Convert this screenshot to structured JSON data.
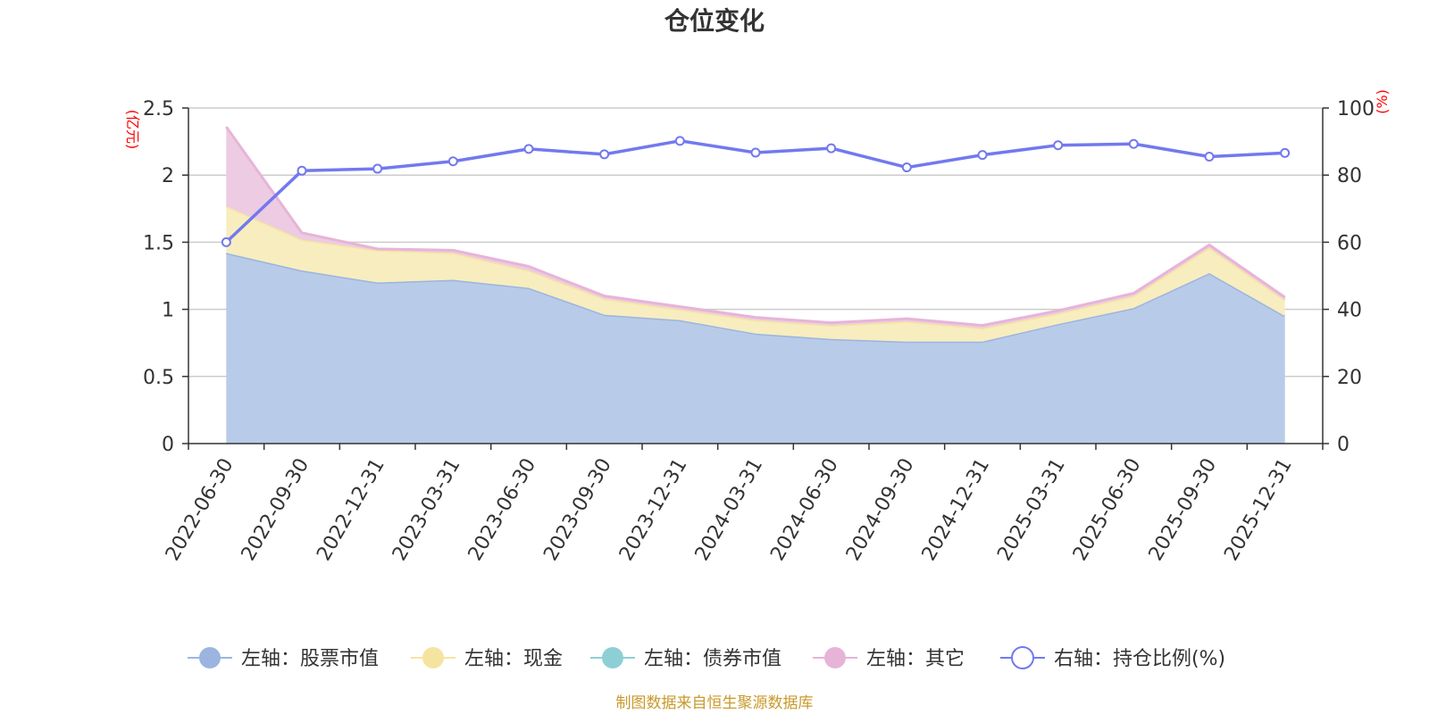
{
  "chart_data": {
    "type": "area",
    "title": "仓位变化",
    "categories": [
      "2022-06-30",
      "2022-09-30",
      "2022-12-31",
      "2023-03-31",
      "2023-06-30",
      "2023-09-30",
      "2023-12-31",
      "2024-03-31",
      "2024-06-30",
      "2024-09-30",
      "2024-12-31",
      "2025-03-31",
      "2025-06-30",
      "2025-09-30",
      "2025-12-31"
    ],
    "left_axis": {
      "unit": "(亿元)",
      "ylim": [
        0,
        2.5
      ],
      "ticks": [
        "0",
        "0.5",
        "1",
        "1.5",
        "2",
        "2.5"
      ],
      "tick_values": [
        0,
        0.5,
        1,
        1.5,
        2,
        2.5
      ]
    },
    "right_axis": {
      "unit": "(%)",
      "ylim": [
        0,
        100
      ],
      "ticks": [
        "0",
        "20",
        "40",
        "60",
        "80",
        "100"
      ],
      "tick_values": [
        0,
        20,
        40,
        60,
        80,
        100
      ]
    },
    "series": [
      {
        "name": "左轴：股票市值",
        "axis": "left",
        "kind": "stacked-area",
        "color": "#9bb5e0",
        "fill": "#b8cbe8",
        "values": [
          1.42,
          1.29,
          1.2,
          1.22,
          1.16,
          0.96,
          0.92,
          0.82,
          0.78,
          0.76,
          0.76,
          0.89,
          1.01,
          1.27,
          0.95
        ]
      },
      {
        "name": "左轴：现金",
        "axis": "left",
        "kind": "stacked-area",
        "color": "#f5e4a0",
        "fill": "#f8edbf",
        "values": [
          0.35,
          0.23,
          0.24,
          0.2,
          0.13,
          0.12,
          0.08,
          0.1,
          0.1,
          0.15,
          0.1,
          0.08,
          0.09,
          0.19,
          0.12
        ]
      },
      {
        "name": "左轴：债券市值",
        "axis": "left",
        "kind": "stacked-area",
        "color": "#8ecfd6",
        "fill": "#b7e2e6",
        "values": [
          0,
          0,
          0,
          0,
          0,
          0,
          0,
          0,
          0,
          0,
          0,
          0,
          0,
          0,
          0
        ]
      },
      {
        "name": "左轴：其它",
        "axis": "left",
        "kind": "stacked-area",
        "color": "#e7b4d8",
        "fill": "#edcbe3",
        "values": [
          0.59,
          0.05,
          0.01,
          0.02,
          0.03,
          0.02,
          0.02,
          0.02,
          0.02,
          0.02,
          0.02,
          0.02,
          0.02,
          0.02,
          0.02
        ]
      },
      {
        "name": "右轴：持仓比例(%)",
        "axis": "right",
        "kind": "line",
        "color": "#7279ee",
        "values": [
          60.0,
          81.3,
          81.9,
          84.1,
          87.8,
          86.2,
          90.2,
          86.7,
          88.0,
          82.3,
          86.0,
          88.9,
          89.3,
          85.5,
          86.6
        ]
      }
    ],
    "legend_position": "bottom",
    "grid": true
  },
  "footer": {
    "source": "制图数据来自恒生聚源数据库"
  }
}
